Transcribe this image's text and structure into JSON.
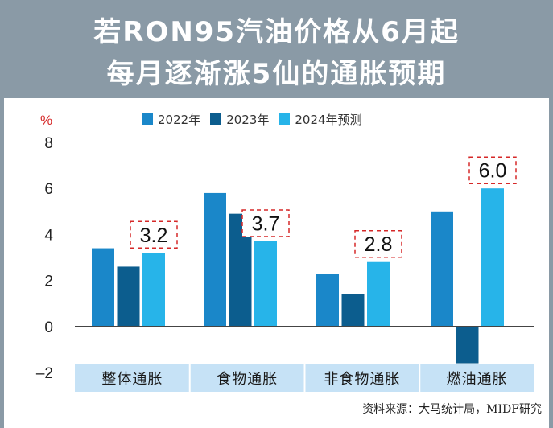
{
  "title": {
    "line1": "若RON95汽油价格从6月起",
    "line2": "每月逐渐涨5仙的通胀预期"
  },
  "colors": {
    "band": "#8a9aa6",
    "s2022": "#1a87c9",
    "s2023": "#0c5d8e",
    "s2024": "#27b4e9",
    "category_band": "#c6e2f6",
    "annotation": "#d62828"
  },
  "source": "资料来源：大马统计局，MIDF研究",
  "chart_data": {
    "type": "bar",
    "ylabel": "%",
    "ylim": [
      -2,
      8
    ],
    "yticks": [
      "8",
      "6",
      "4",
      "2",
      "0",
      "–2"
    ],
    "categories": [
      "整体通胀",
      "食物通胀",
      "非食物通胀",
      "燃油通胀"
    ],
    "series": [
      {
        "name": "2022年",
        "values": [
          3.4,
          5.8,
          2.3,
          5.0
        ]
      },
      {
        "name": "2023年",
        "values": [
          2.6,
          4.9,
          1.4,
          -1.6
        ]
      },
      {
        "name": "2024年预测",
        "values": [
          3.2,
          3.7,
          2.8,
          6.0
        ]
      }
    ],
    "annotations": [
      "3.2",
      "3.7",
      "2.8",
      "6.0"
    ],
    "legend_position": "top"
  }
}
